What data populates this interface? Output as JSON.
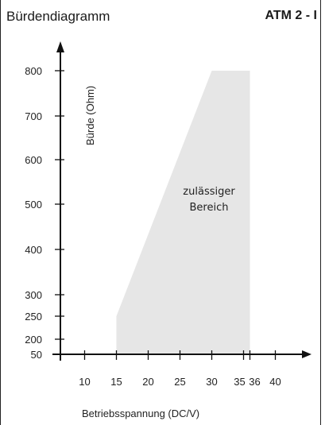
{
  "header": {
    "title": "Bürdendiagramm",
    "model": "ATM 2 - I"
  },
  "chart_data": {
    "type": "area",
    "xlabel": "Betriebsspannung (DC/V)",
    "ylabel": "Bürde (Ohm)",
    "x_ticks": [
      10,
      15,
      20,
      25,
      30,
      35,
      36,
      40
    ],
    "x_tick_labels": [
      "10",
      "15",
      "20",
      "25",
      "30",
      "35",
      "36",
      "40"
    ],
    "y_ticks": [
      50,
      200,
      250,
      300,
      400,
      500,
      600,
      700,
      800
    ],
    "y_tick_labels": [
      "50",
      "200",
      "250",
      "300",
      "400",
      "500",
      "600",
      "700",
      "800"
    ],
    "series": [
      {
        "name": "zulässiger Bereich",
        "x": [
          15,
          15,
          30,
          36,
          36
        ],
        "y": [
          50,
          250,
          800,
          800,
          50
        ]
      }
    ],
    "annotation": [
      "zulässiger",
      "Bereich"
    ],
    "fill_color": "#e6e6e6",
    "grid": false
  }
}
